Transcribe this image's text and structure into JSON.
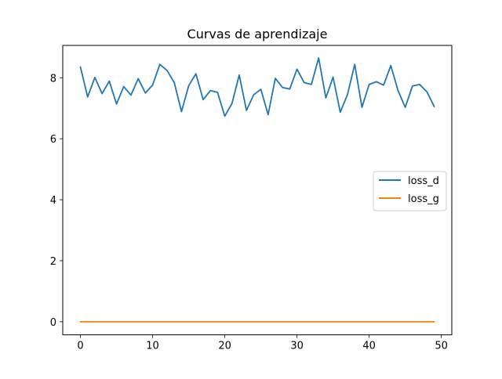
{
  "chart_data": {
    "type": "line",
    "title": "Curvas de aprendizaje",
    "xlabel": "",
    "ylabel": "",
    "xlim": [
      -2.45,
      51.45
    ],
    "ylim": [
      -0.43,
      9.06
    ],
    "xticks": [
      0,
      10,
      20,
      30,
      40,
      50
    ],
    "yticks": [
      0,
      2,
      4,
      6,
      8
    ],
    "grid": false,
    "legend_position": "center-right",
    "x": [
      0,
      1,
      2,
      3,
      4,
      5,
      6,
      7,
      8,
      9,
      10,
      11,
      12,
      13,
      14,
      15,
      16,
      17,
      18,
      19,
      20,
      21,
      22,
      23,
      24,
      25,
      26,
      27,
      28,
      29,
      30,
      31,
      32,
      33,
      34,
      35,
      36,
      37,
      38,
      39,
      40,
      41,
      42,
      43,
      44,
      45,
      46,
      47,
      48,
      49
    ],
    "series": [
      {
        "name": "loss_d",
        "color": "#1f77b4",
        "values": [
          8.35,
          7.37,
          8.01,
          7.48,
          7.89,
          7.14,
          7.71,
          7.43,
          7.97,
          7.5,
          7.76,
          8.44,
          8.24,
          7.84,
          6.89,
          7.74,
          8.13,
          7.28,
          7.58,
          7.52,
          6.74,
          7.16,
          8.09,
          6.93,
          7.44,
          7.62,
          6.79,
          7.98,
          7.68,
          7.63,
          8.28,
          7.84,
          7.78,
          8.65,
          7.34,
          8.02,
          6.87,
          7.45,
          8.44,
          7.03,
          7.78,
          7.87,
          7.76,
          8.4,
          7.58,
          7.03,
          7.73,
          7.78,
          7.54,
          7.06
        ]
      },
      {
        "name": "loss_g",
        "color": "#ff7f0e",
        "values": [
          0,
          0,
          0,
          0,
          0,
          0,
          0,
          0,
          0,
          0,
          0,
          0,
          0,
          0,
          0,
          0,
          0,
          0,
          0,
          0,
          0,
          0,
          0,
          0,
          0,
          0,
          0,
          0,
          0,
          0,
          0,
          0,
          0,
          0,
          0,
          0,
          0,
          0,
          0,
          0,
          0,
          0,
          0,
          0,
          0,
          0,
          0,
          0,
          0,
          0
        ]
      }
    ]
  }
}
